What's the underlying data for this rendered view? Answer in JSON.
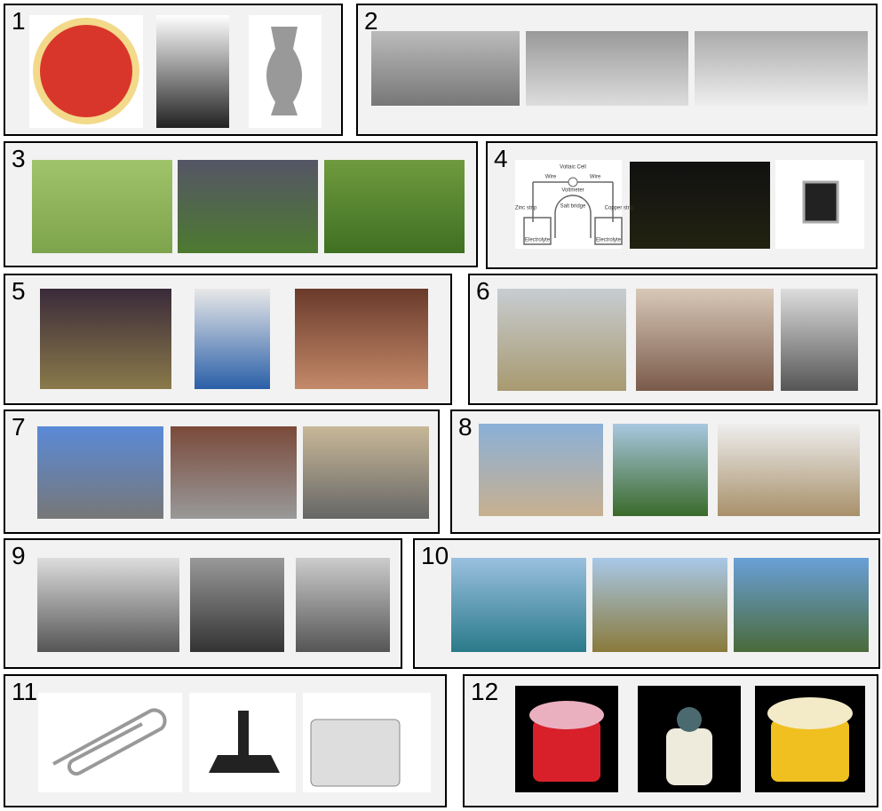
{
  "panels": [
    {
      "label": "1"
    },
    {
      "label": "2"
    },
    {
      "label": "3"
    },
    {
      "label": "4",
      "diagram_labels": [
        "Voltaic Cell",
        "Wire",
        "Wire",
        "Voltmeter",
        "Zinc strip",
        "Salt bridge",
        "Copper strip",
        "Electrolyte",
        "Electrolyte"
      ]
    },
    {
      "label": "5"
    },
    {
      "label": "6"
    },
    {
      "label": "7"
    },
    {
      "label": "8"
    },
    {
      "label": "9"
    },
    {
      "label": "10"
    },
    {
      "label": "11"
    },
    {
      "label": "12"
    }
  ]
}
